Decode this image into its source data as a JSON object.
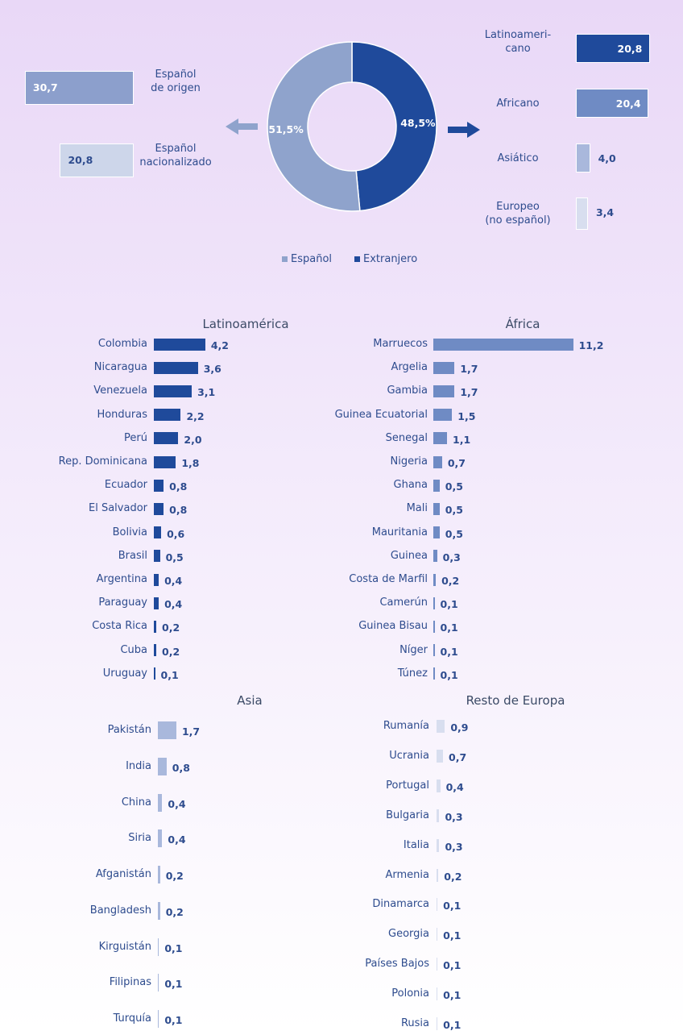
{
  "chart_data": [
    {
      "type": "pie",
      "categories": [
        "Español",
        "Extranjero"
      ],
      "values": [
        51.5,
        48.5
      ],
      "value_labels": [
        "51,5%",
        "48,5%"
      ],
      "colors": [
        "#8fa3cc",
        "#1f4a9b"
      ],
      "legend": true
    },
    {
      "type": "bar",
      "categories": [
        "Español\nde origen",
        "Español\nnacionalizado"
      ],
      "values": [
        30.7,
        20.8
      ],
      "value_labels": [
        "30,7",
        "20,8"
      ],
      "colors": [
        "#8c9fcc",
        "#cdd6ea"
      ]
    },
    {
      "type": "bar",
      "categories": [
        "Latinoameri-\ncano",
        "Africano",
        "Asiático",
        "Europeo\n(no español)"
      ],
      "values": [
        20.8,
        20.4,
        4.0,
        3.4
      ],
      "value_labels": [
        "20,8",
        "20,4",
        "4,0",
        "3,4"
      ],
      "colors": [
        "#1f4a9b",
        "#6f8bc4",
        "#a9b8dc",
        "#d8deef"
      ]
    },
    {
      "type": "bar",
      "title": "Latinoamérica",
      "categories": [
        "Colombia",
        "Nicaragua",
        "Venezuela",
        "Honduras",
        "Perú",
        "Rep. Dominicana",
        "Ecuador",
        "El Salvador",
        "Bolivia",
        "Brasil",
        "Argentina",
        "Paraguay",
        "Costa Rica",
        "Cuba",
        "Uruguay"
      ],
      "values": [
        4.2,
        3.6,
        3.1,
        2.2,
        2.0,
        1.8,
        0.8,
        0.8,
        0.6,
        0.5,
        0.4,
        0.4,
        0.2,
        0.2,
        0.1
      ],
      "value_labels": [
        "4,2",
        "3,6",
        "3,1",
        "2,2",
        "2,0",
        "1,8",
        "0,8",
        "0,8",
        "0,6",
        "0,5",
        "0,4",
        "0,4",
        "0,2",
        "0,2",
        "0,1"
      ],
      "color": "#1f4a9b"
    },
    {
      "type": "bar",
      "title": "África",
      "categories": [
        "Marruecos",
        "Argelia",
        "Gambia",
        "Guinea Ecuatorial",
        "Senegal",
        "Nigeria",
        "Ghana",
        "Mali",
        "Mauritania",
        "Guinea",
        "Costa de Marfil",
        "Camerún",
        "Guinea Bisau",
        "Níger",
        "Túnez"
      ],
      "values": [
        11.2,
        1.7,
        1.7,
        1.5,
        1.1,
        0.7,
        0.5,
        0.5,
        0.5,
        0.3,
        0.2,
        0.1,
        0.1,
        0.1,
        0.1
      ],
      "value_labels": [
        "11,2",
        "1,7",
        "1,7",
        "1,5",
        "1,1",
        "0,7",
        "0,5",
        "0,5",
        "0,5",
        "0,3",
        "0,2",
        "0,1",
        "0,1",
        "0,1",
        "0,1"
      ],
      "color": "#6f8bc4"
    },
    {
      "type": "bar",
      "title": "Asia",
      "categories": [
        "Pakistán",
        "India",
        "China",
        "Siria",
        "Afganistán",
        "Bangladesh",
        "Kirguistán",
        "Filipinas",
        "Turquía"
      ],
      "values": [
        1.7,
        0.8,
        0.4,
        0.4,
        0.2,
        0.2,
        0.1,
        0.1,
        0.1
      ],
      "value_labels": [
        "1,7",
        "0,8",
        "0,4",
        "0,4",
        "0,2",
        "0,2",
        "0,1",
        "0,1",
        "0,1"
      ],
      "color": "#a9b8dc"
    },
    {
      "type": "bar",
      "title": "Resto de Europa",
      "categories": [
        "Rumanía",
        "Ucrania",
        "Portugal",
        "Bulgaria",
        "Italia",
        "Armenia",
        "Dinamarca",
        "Georgia",
        "Países Bajos",
        "Polonia",
        "Rusia"
      ],
      "values": [
        0.9,
        0.7,
        0.4,
        0.3,
        0.3,
        0.2,
        0.1,
        0.1,
        0.1,
        0.1,
        0.1
      ],
      "value_labels": [
        "0,9",
        "0,7",
        "0,4",
        "0,3",
        "0,3",
        "0,2",
        "0,1",
        "0,1",
        "0,1",
        "0,1",
        "0,1"
      ],
      "color": "#d8deef"
    }
  ]
}
